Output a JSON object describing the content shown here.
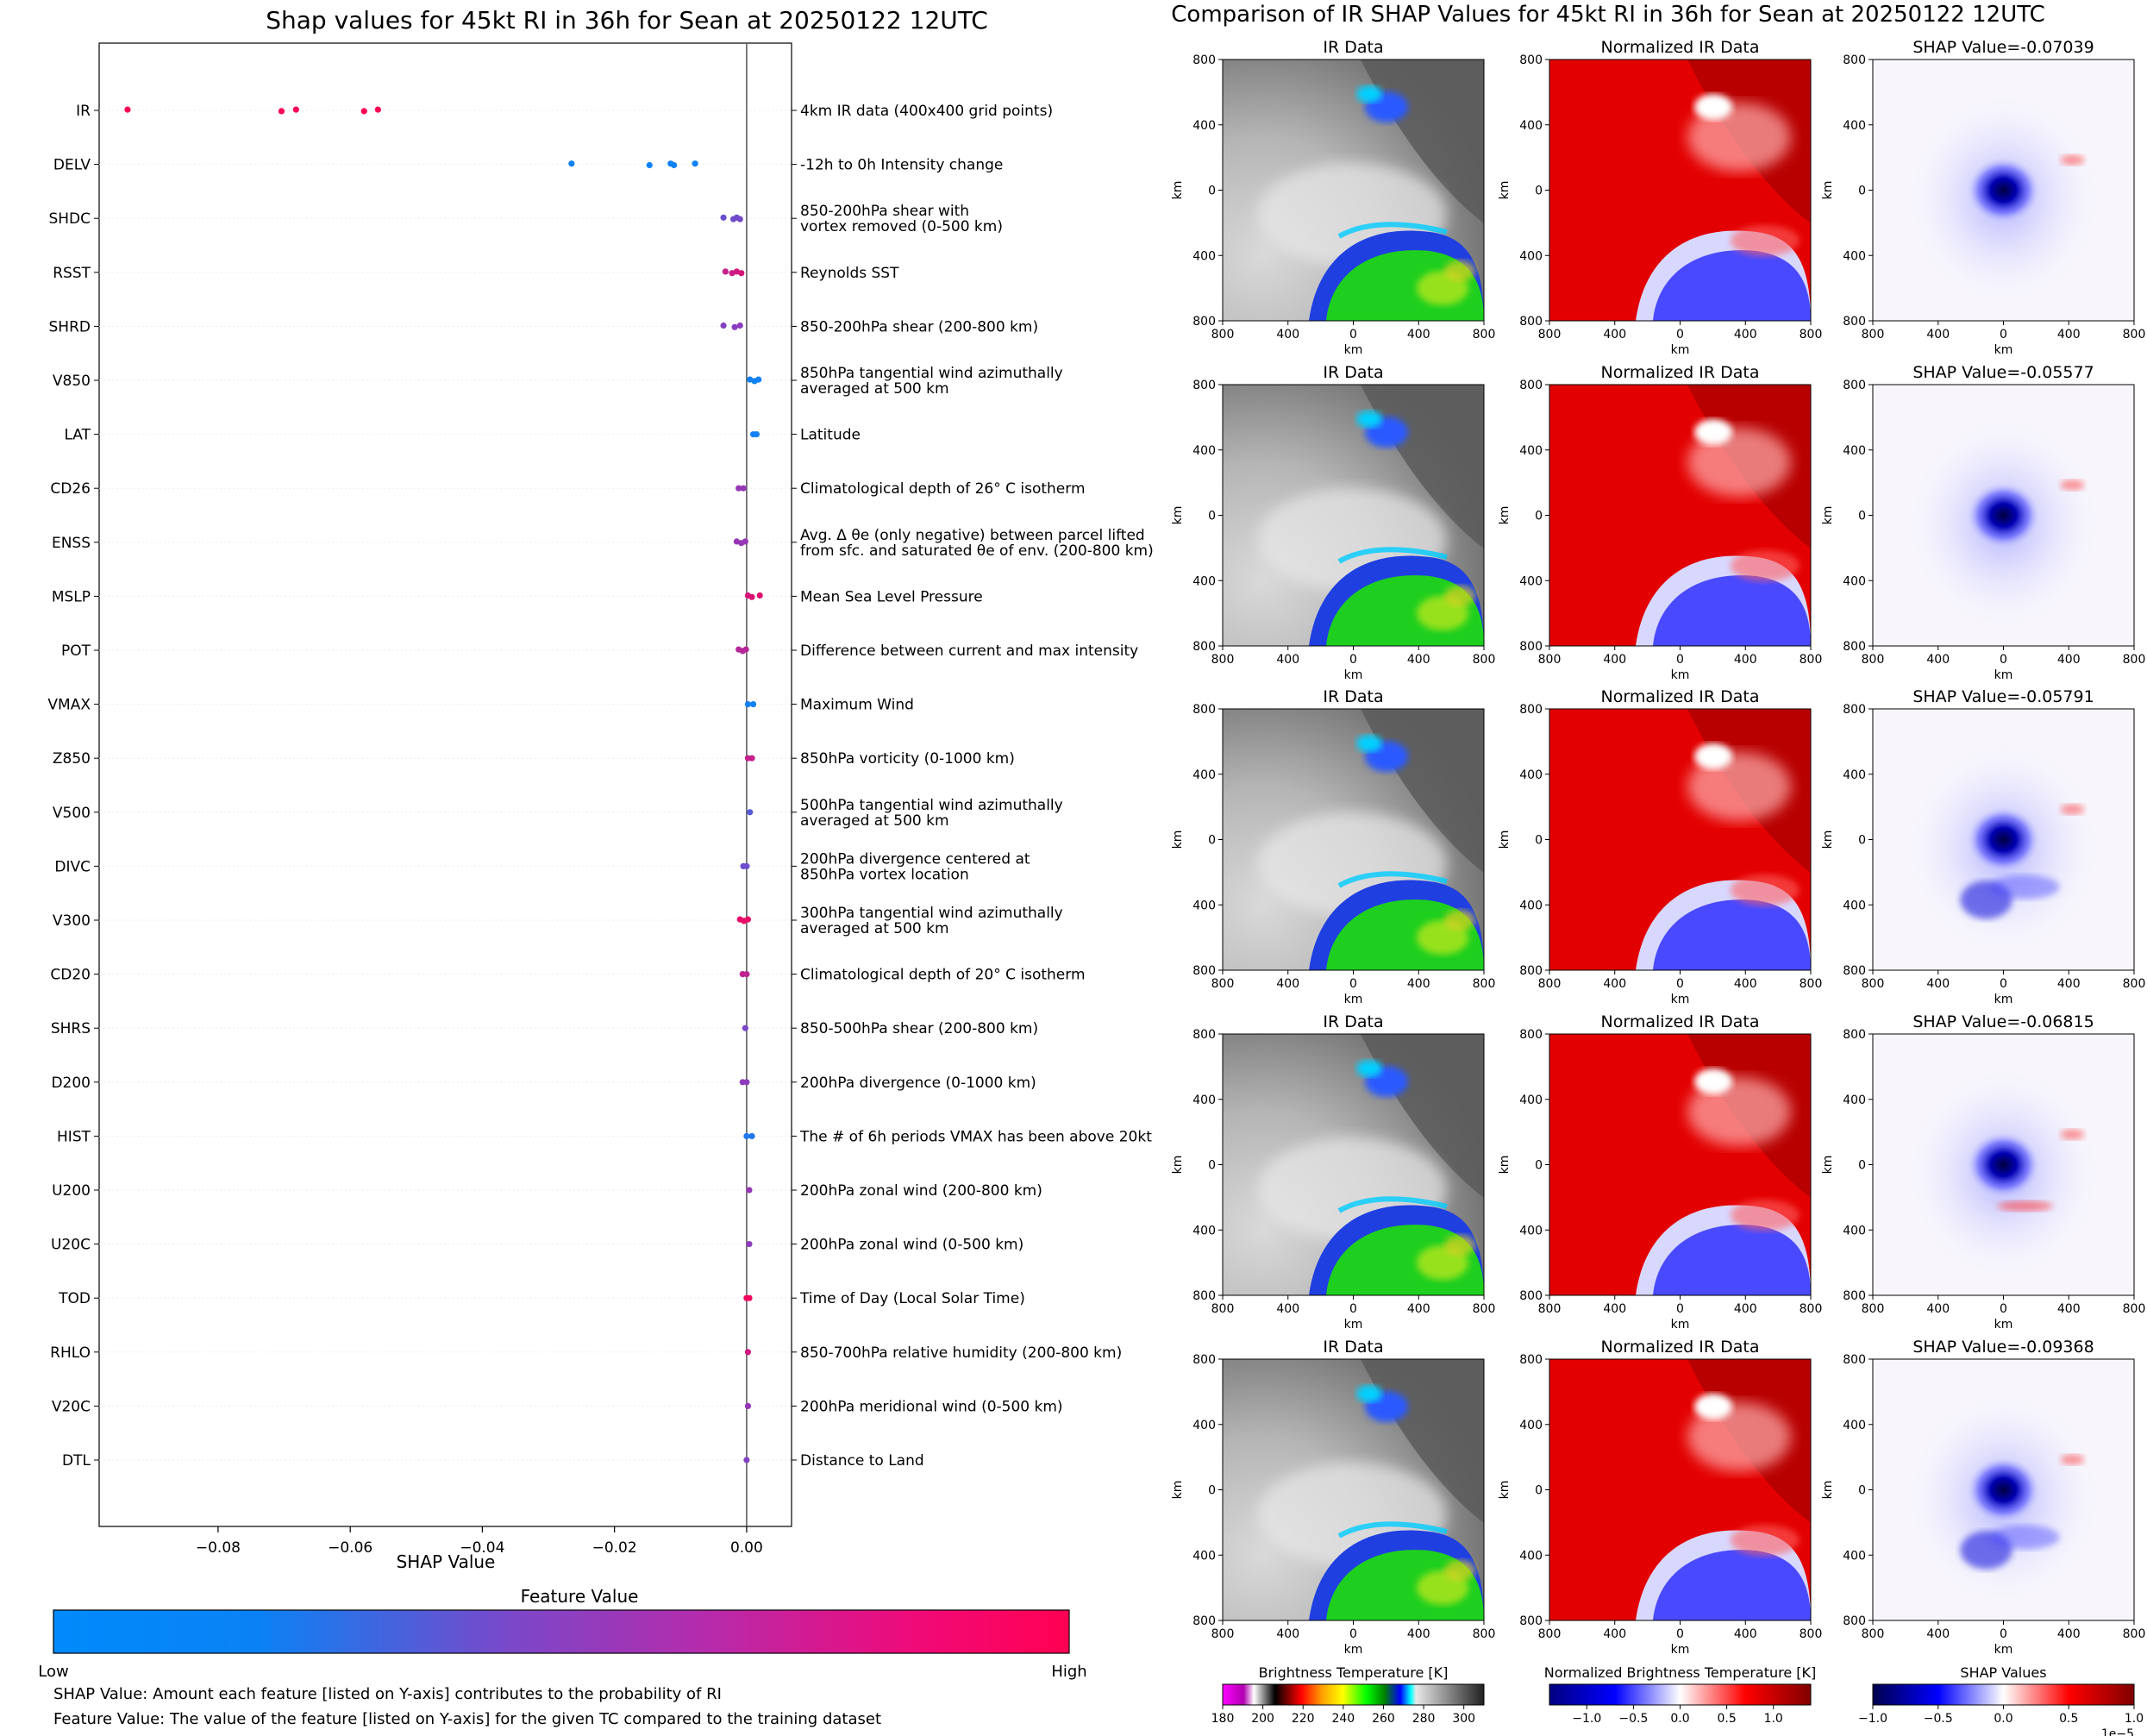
{
  "colors": {
    "low": "#008afb",
    "mid": "#8a3dc1",
    "high": "#ff0052",
    "axis": "#000000",
    "grid": "#eeeeee"
  },
  "chart_data": [
    {
      "type": "scatter",
      "title": "Shap values for 45kt RI in 36h for Sean at 20250122 12UTC",
      "xlabel": "SHAP Value",
      "ylabel": "",
      "xlim": [
        -0.098,
        0.0068
      ],
      "xticks": [
        -0.08,
        -0.06,
        -0.04,
        -0.02,
        0.0
      ],
      "xtick_labels": [
        "−0.08",
        "−0.06",
        "−0.04",
        "−0.02",
        "0.00"
      ],
      "features": [
        {
          "code": "IR",
          "description": [
            "4km IR data (400x400 grid points)"
          ],
          "shap": [
            -0.0937,
            -0.0704,
            -0.0682,
            -0.0579,
            -0.0558
          ],
          "fv": [
            0.99,
            0.99,
            0.99,
            0.99,
            0.99
          ]
        },
        {
          "code": "DELV",
          "description": [
            "-12h to 0h Intensity change"
          ],
          "shap": [
            -0.0265,
            -0.0147,
            -0.0115,
            -0.011,
            -0.0078
          ],
          "fv": [
            0.05,
            0.05,
            0.05,
            0.05,
            0.05
          ]
        },
        {
          "code": "SHDC",
          "description": [
            "850-200hPa shear with",
            "vortex removed (0-500 km)"
          ],
          "shap": [
            -0.0035,
            -0.002,
            -0.0015,
            -0.001
          ],
          "fv": [
            0.38,
            0.4,
            0.4,
            0.42
          ]
        },
        {
          "code": "RSST",
          "description": [
            "Reynolds SST"
          ],
          "shap": [
            -0.0032,
            -0.0022,
            -0.0015,
            -0.0008
          ],
          "fv": [
            0.75,
            0.78,
            0.8,
            0.82
          ]
        },
        {
          "code": "SHRD",
          "description": [
            "850-200hPa shear (200-800 km)"
          ],
          "shap": [
            -0.0035,
            -0.0018,
            -0.001
          ],
          "fv": [
            0.48,
            0.5,
            0.52
          ]
        },
        {
          "code": "V850",
          "description": [
            "850hPa tangential wind azimuthally",
            "averaged at 500 km"
          ],
          "shap": [
            0.0005,
            0.0012,
            0.0018
          ],
          "fv": [
            0.06,
            0.06,
            0.06
          ]
        },
        {
          "code": "LAT",
          "description": [
            "Latitude"
          ],
          "shap": [
            0.001,
            0.0015
          ],
          "fv": [
            0.06,
            0.06
          ]
        },
        {
          "code": "CD26",
          "description": [
            "Climatological depth of 26° C isotherm"
          ],
          "shap": [
            -0.0012,
            -0.0005
          ],
          "fv": [
            0.55,
            0.55
          ]
        },
        {
          "code": "ENSS",
          "description": [
            "Avg. Δ θe (only negative) between parcel lifted",
            "from sfc. and saturated θe of env. (200-800 km)"
          ],
          "shap": [
            -0.0015,
            -0.0008,
            -0.0002
          ],
          "fv": [
            0.55,
            0.55,
            0.55
          ]
        },
        {
          "code": "MSLP",
          "description": [
            "Mean Sea Level Pressure"
          ],
          "shap": [
            0.0002,
            0.0008,
            0.002
          ],
          "fv": [
            0.82,
            0.85,
            0.88
          ]
        },
        {
          "code": "POT",
          "description": [
            "Difference between current and max intensity"
          ],
          "shap": [
            -0.0012,
            -0.0006,
            -0.0001
          ],
          "fv": [
            0.68,
            0.68,
            0.68
          ]
        },
        {
          "code": "VMAX",
          "description": [
            "Maximum Wind"
          ],
          "shap": [
            0.0002,
            0.001
          ],
          "fv": [
            0.06,
            0.06
          ]
        },
        {
          "code": "Z850",
          "description": [
            "850hPa vorticity (0-1000 km)"
          ],
          "shap": [
            0.0002,
            0.0008
          ],
          "fv": [
            0.75,
            0.75
          ]
        },
        {
          "code": "V500",
          "description": [
            "500hPa tangential wind azimuthally",
            "averaged at 500 km"
          ],
          "shap": [
            0.0005
          ],
          "fv": [
            0.32
          ]
        },
        {
          "code": "DIVC",
          "description": [
            "200hPa divergence centered at",
            "850hPa vortex location"
          ],
          "shap": [
            -0.0005,
            0.0
          ],
          "fv": [
            0.4,
            0.4
          ]
        },
        {
          "code": "V300",
          "description": [
            "300hPa tangential wind azimuthally",
            "averaged at 500 km"
          ],
          "shap": [
            -0.001,
            -0.0004,
            0.0002
          ],
          "fv": [
            0.9,
            0.9,
            0.9
          ]
        },
        {
          "code": "CD20",
          "description": [
            "Climatological depth of 20° C isotherm"
          ],
          "shap": [
            -0.0006,
            0.0
          ],
          "fv": [
            0.72,
            0.72
          ]
        },
        {
          "code": "SHRS",
          "description": [
            "850-500hPa shear (200-800 km)"
          ],
          "shap": [
            -0.0002
          ],
          "fv": [
            0.45
          ]
        },
        {
          "code": "D200",
          "description": [
            "200hPa divergence (0-1000 km)"
          ],
          "shap": [
            -0.0006,
            0.0
          ],
          "fv": [
            0.52,
            0.52
          ]
        },
        {
          "code": "HIST",
          "description": [
            "The # of 6h periods VMAX has been above 20kt"
          ],
          "shap": [
            0.0,
            0.0008
          ],
          "fv": [
            0.12,
            0.12
          ]
        },
        {
          "code": "U200",
          "description": [
            "200hPa zonal wind (200-800 km)"
          ],
          "shap": [
            0.0004
          ],
          "fv": [
            0.55
          ]
        },
        {
          "code": "U20C",
          "description": [
            "200hPa zonal wind (0-500 km)"
          ],
          "shap": [
            0.0004
          ],
          "fv": [
            0.52
          ]
        },
        {
          "code": "TOD",
          "description": [
            "Time of Day (Local Solar Time)"
          ],
          "shap": [
            0.0,
            0.0004
          ],
          "fv": [
            0.95,
            0.95
          ]
        },
        {
          "code": "RHLO",
          "description": [
            "850-700hPa relative humidity (200-800 km)"
          ],
          "shap": [
            0.0002
          ],
          "fv": [
            0.8
          ]
        },
        {
          "code": "V20C",
          "description": [
            "200hPa meridional wind (0-500 km)"
          ],
          "shap": [
            0.0002
          ],
          "fv": [
            0.55
          ]
        },
        {
          "code": "DTL",
          "description": [
            "Distance to Land"
          ],
          "shap": [
            0.0
          ],
          "fv": [
            0.48
          ]
        }
      ],
      "colorbar": {
        "title": "Feature Value",
        "low_label": "Low",
        "high_label": "High"
      }
    },
    {
      "type": "heatmap",
      "title": "Comparison of IR SHAP Values for 45kt RI in 36h for Sean at 20250122 12UTC",
      "panel_titles": {
        "ir": "IR Data",
        "norm": "Normalized IR Data",
        "shap_prefix": "SHAP Value="
      },
      "shap_values": [
        "-0.07039",
        "-0.05577",
        "-0.05791",
        "-0.06815",
        "-0.09368"
      ],
      "axis_ticks": [
        "800",
        "400",
        "0",
        "400",
        "800"
      ],
      "axis_label": "km",
      "colorbars": [
        {
          "title": "Brightness Temperature [K]",
          "ticks": [
            "180",
            "200",
            "220",
            "240",
            "260",
            "280",
            "300"
          ],
          "range": [
            180,
            310
          ]
        },
        {
          "title": "Normalized Brightness Temperature [K]",
          "ticks": [
            "−1.0",
            "−0.5",
            "0.0",
            "0.5",
            "1.0"
          ],
          "range": [
            -1.4,
            1.4
          ]
        },
        {
          "title": "SHAP Values",
          "ticks": [
            "−1.0",
            "−0.5",
            "0.0",
            "0.5",
            "1.0"
          ],
          "range": [
            -1.0,
            1.0
          ],
          "offset": "1e−5"
        }
      ]
    }
  ],
  "footnotes": {
    "shap": "SHAP Value: Amount each feature [listed on Y-axis] contributes to the probability of RI",
    "feature": "Feature Value: The value of the feature [listed on Y-axis] for the given TC compared to the training dataset"
  }
}
